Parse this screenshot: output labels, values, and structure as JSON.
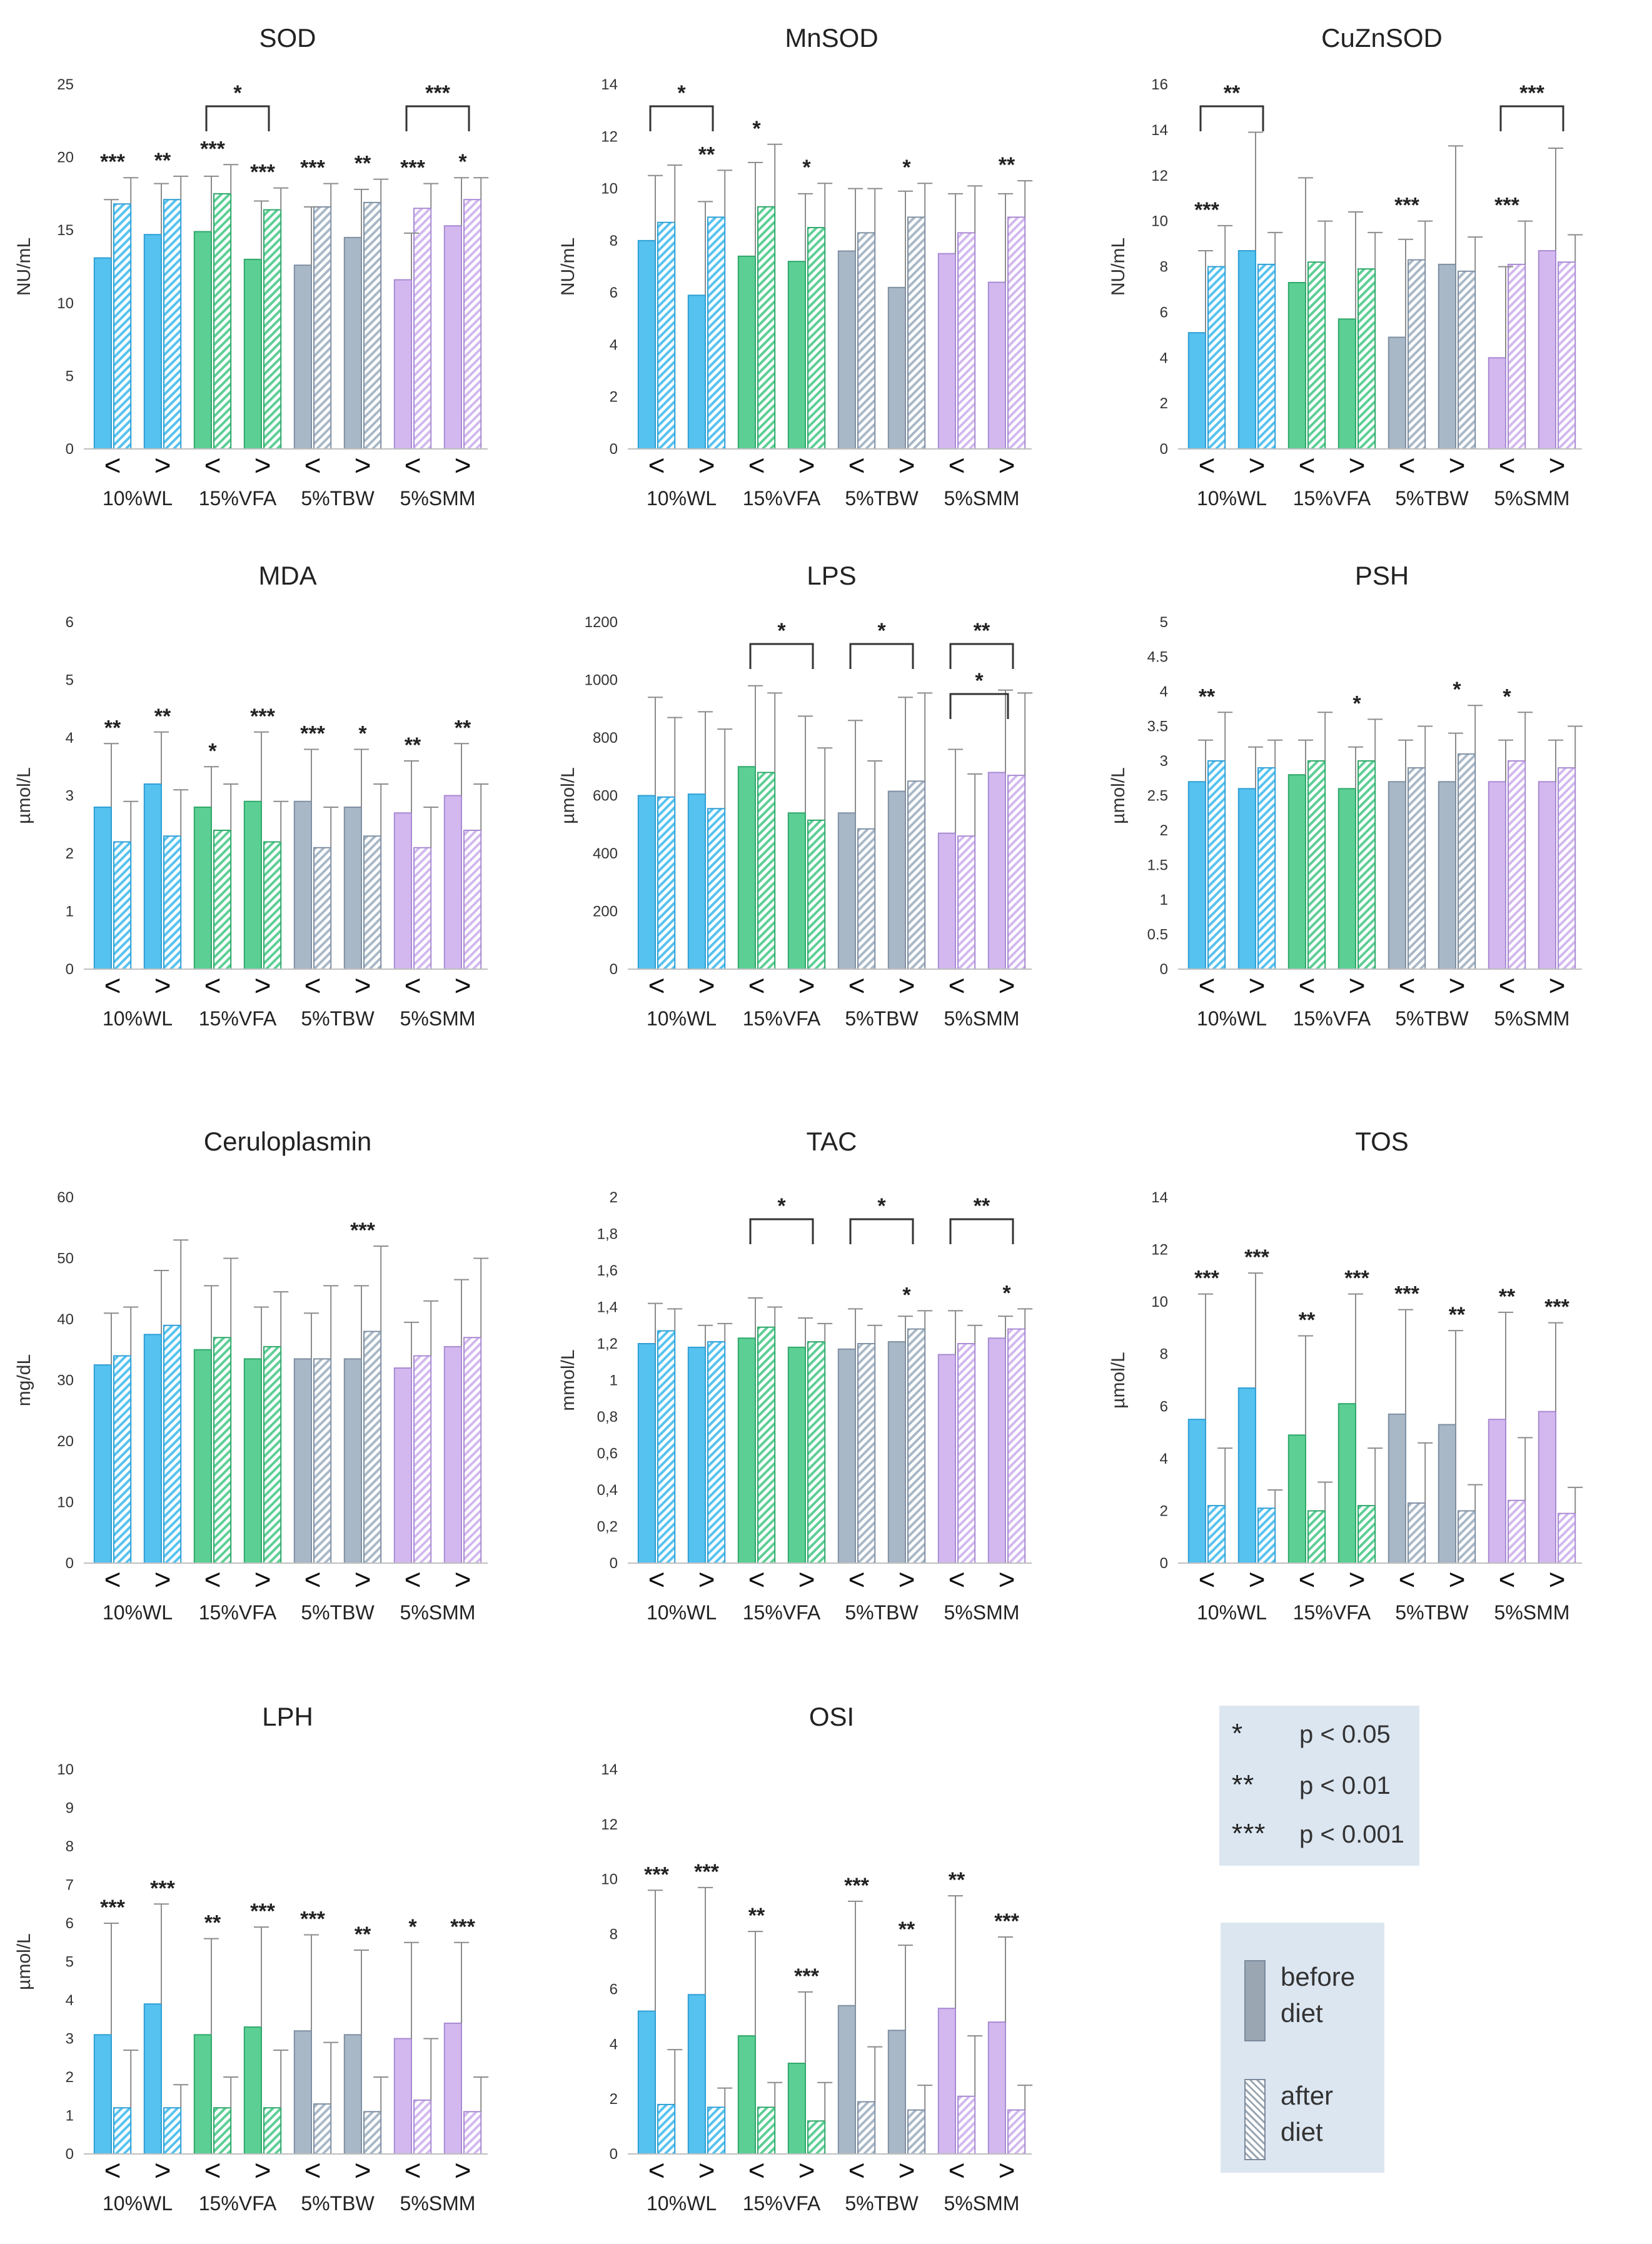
{
  "colors": {
    "wl": "#56c2ef",
    "vfa": "#5ccf95",
    "tbw": "#a9b8c7",
    "smm": "#d2b8ee",
    "edge_wl": "#2f9fd6",
    "edge_vfa": "#2fa86a",
    "edge_tbw": "#7f90a2",
    "edge_smm": "#a98ad3"
  },
  "legend": {
    "significance": [
      {
        "stars": "*",
        "label": "p < 0.05"
      },
      {
        "stars": "**",
        "label": "p < 0.01"
      },
      {
        "stars": "***",
        "label": "p < 0.001"
      }
    ],
    "before": [
      "before",
      "diet"
    ],
    "after": [
      "after",
      "diet"
    ]
  },
  "chart_data": [
    {
      "type": "bar",
      "title": "SOD",
      "ylabel": "NU/mL",
      "ylim": [
        0,
        25
      ],
      "yticks": [
        "0",
        "5",
        "10",
        "15",
        "20",
        "25"
      ],
      "groups": [
        "10%WL",
        "15%VFA",
        "5%TBW",
        "5%SMM"
      ],
      "subcategories": [
        "<",
        ">",
        "<",
        ">",
        "<",
        ">",
        "<",
        ">"
      ],
      "series": [
        {
          "name": "before diet",
          "values": [
            13.1,
            14.7,
            14.9,
            13.0,
            12.6,
            14.5,
            11.6,
            15.3
          ],
          "errors": [
            4.0,
            3.5,
            3.8,
            4.0,
            4.0,
            3.3,
            3.2,
            3.3
          ]
        },
        {
          "name": "after diet",
          "values": [
            16.8,
            17.1,
            17.5,
            16.4,
            16.6,
            16.9,
            16.5,
            17.1
          ],
          "errors": [
            1.8,
            1.6,
            2.0,
            1.5,
            1.6,
            1.6,
            1.7,
            1.5
          ]
        }
      ],
      "pair_stars": [
        "***",
        "**",
        "***",
        "***",
        "***",
        "**",
        "***",
        "*"
      ],
      "brackets": [
        {
          "from": 2,
          "to": 3,
          "label": "*"
        },
        {
          "from": 6,
          "to": 7,
          "label": "***"
        }
      ]
    },
    {
      "type": "bar",
      "title": "MnSOD",
      "ylabel": "NU/mL",
      "ylim": [
        0,
        14
      ],
      "yticks": [
        "0",
        "2",
        "4",
        "6",
        "8",
        "10",
        "12",
        "14"
      ],
      "groups": [
        "10%WL",
        "15%VFA",
        "5%TBW",
        "5%SMM"
      ],
      "subcategories": [
        "<",
        ">",
        "<",
        ">",
        "<",
        ">",
        "<",
        ">"
      ],
      "series": [
        {
          "name": "before diet",
          "values": [
            8.0,
            5.9,
            7.4,
            7.2,
            7.6,
            6.2,
            7.5,
            6.4
          ],
          "errors": [
            2.5,
            3.6,
            3.6,
            2.6,
            2.4,
            3.7,
            2.3,
            3.4
          ]
        },
        {
          "name": "after diet",
          "values": [
            8.7,
            8.9,
            9.3,
            8.5,
            8.3,
            8.9,
            8.3,
            8.9
          ],
          "errors": [
            2.2,
            1.8,
            2.4,
            1.7,
            1.7,
            1.3,
            1.8,
            1.4
          ]
        }
      ],
      "pair_stars": [
        "",
        "**",
        "*",
        "*",
        "",
        "*",
        "",
        "**"
      ],
      "brackets": [
        {
          "from": 0,
          "to": 1,
          "label": "*"
        }
      ]
    },
    {
      "type": "bar",
      "title": "CuZnSOD",
      "ylabel": "NU/mL",
      "ylim": [
        0,
        16
      ],
      "yticks": [
        "0",
        "2",
        "4",
        "6",
        "8",
        "10",
        "12",
        "14",
        "16"
      ],
      "groups": [
        "10%WL",
        "15%VFA",
        "5%TBW",
        "5%SMM"
      ],
      "subcategories": [
        "<",
        ">",
        "<",
        ">",
        "<",
        ">",
        "<",
        ">"
      ],
      "series": [
        {
          "name": "before diet",
          "values": [
            5.1,
            8.7,
            7.3,
            5.7,
            4.9,
            8.1,
            4.0,
            8.7
          ],
          "errors": [
            3.6,
            5.2,
            4.6,
            4.7,
            4.3,
            5.2,
            4.0,
            4.5
          ]
        },
        {
          "name": "after diet",
          "values": [
            8.0,
            8.1,
            8.2,
            7.9,
            8.3,
            7.8,
            8.1,
            8.2
          ],
          "errors": [
            1.8,
            1.4,
            1.8,
            1.6,
            1.7,
            1.5,
            1.9,
            1.2
          ]
        }
      ],
      "pair_stars": [
        "***",
        "",
        "",
        "",
        "***",
        "",
        "***",
        ""
      ],
      "brackets": [
        {
          "from": 0,
          "to": 1,
          "label": "**"
        },
        {
          "from": 6,
          "to": 7,
          "label": "***"
        }
      ]
    },
    {
      "type": "bar",
      "title": "MDA",
      "ylabel": "µmol/L",
      "ylim": [
        0,
        6
      ],
      "yticks": [
        "0",
        "1",
        "2",
        "3",
        "4",
        "5",
        "6"
      ],
      "groups": [
        "10%WL",
        "15%VFA",
        "5%TBW",
        "5%SMM"
      ],
      "subcategories": [
        "<",
        ">",
        "<",
        ">",
        "<",
        ">",
        "<",
        ">"
      ],
      "series": [
        {
          "name": "before diet",
          "values": [
            2.8,
            3.2,
            2.8,
            2.9,
            2.9,
            2.8,
            2.7,
            3.0
          ],
          "errors": [
            1.1,
            0.9,
            0.7,
            1.2,
            0.9,
            1.0,
            0.9,
            0.9
          ]
        },
        {
          "name": "after diet",
          "values": [
            2.2,
            2.3,
            2.4,
            2.2,
            2.1,
            2.3,
            2.1,
            2.4
          ],
          "errors": [
            0.7,
            0.8,
            0.8,
            0.7,
            0.7,
            0.9,
            0.7,
            0.8
          ]
        }
      ],
      "pair_stars": [
        "**",
        "**",
        "*",
        "***",
        "***",
        "*",
        "**",
        "**"
      ],
      "brackets": []
    },
    {
      "type": "bar",
      "title": "LPS",
      "ylabel": "µmol/L",
      "ylim": [
        0,
        1200
      ],
      "yticks": [
        "0",
        "200",
        "400",
        "600",
        "800",
        "1000",
        "1200"
      ],
      "groups": [
        "10%WL",
        "15%VFA",
        "5%TBW",
        "5%SMM"
      ],
      "subcategories": [
        "<",
        ">",
        "<",
        ">",
        "<",
        ">",
        "<",
        ">"
      ],
      "series": [
        {
          "name": "before diet",
          "values": [
            600,
            605,
            700,
            540,
            540,
            615,
            470,
            680
          ],
          "errors": [
            340,
            285,
            280,
            335,
            320,
            325,
            290,
            285
          ]
        },
        {
          "name": "after diet",
          "values": [
            595,
            555,
            680,
            515,
            485,
            650,
            460,
            670
          ],
          "errors": [
            275,
            275,
            275,
            250,
            235,
            305,
            215,
            285
          ]
        }
      ],
      "pair_stars": [
        "",
        "",
        "",
        "",
        "",
        "",
        "",
        ""
      ],
      "brackets": [
        {
          "from": 2,
          "to": 3,
          "label": "*"
        },
        {
          "from": 4,
          "to": 5,
          "label": "*"
        },
        {
          "from": 6,
          "to": 7,
          "label": "**"
        },
        {
          "from": 6,
          "to": 6.9,
          "label": "*",
          "level": "low"
        }
      ]
    },
    {
      "type": "bar",
      "title": "PSH",
      "ylabel": "µmol/L",
      "ylim": [
        0,
        5
      ],
      "yticks": [
        "0",
        "0.5",
        "1",
        "1.5",
        "2",
        "2.5",
        "3",
        "3.5",
        "4",
        "4.5",
        "5"
      ],
      "groups": [
        "10%WL",
        "15%VFA",
        "5%TBW",
        "5%SMM"
      ],
      "subcategories": [
        "<",
        ">",
        "<",
        ">",
        "<",
        ">",
        "<",
        ">"
      ],
      "series": [
        {
          "name": "before diet",
          "values": [
            2.7,
            2.6,
            2.8,
            2.6,
            2.7,
            2.7,
            2.7,
            2.7
          ],
          "errors": [
            0.6,
            0.6,
            0.5,
            0.6,
            0.6,
            0.7,
            0.6,
            0.6
          ]
        },
        {
          "name": "after diet",
          "values": [
            3.0,
            2.9,
            3.0,
            3.0,
            2.9,
            3.1,
            3.0,
            2.9
          ],
          "errors": [
            0.7,
            0.4,
            0.7,
            0.6,
            0.6,
            0.7,
            0.7,
            0.6
          ]
        }
      ],
      "pair_stars": [
        "**",
        "",
        "",
        "*",
        "",
        "*",
        "*",
        ""
      ],
      "brackets": []
    },
    {
      "type": "bar",
      "title": "Ceruloplasmin",
      "ylabel": "mg/dL",
      "ylim": [
        0,
        60
      ],
      "yticks": [
        "0",
        "10",
        "20",
        "30",
        "40",
        "50",
        "60"
      ],
      "groups": [
        "10%WL",
        "15%VFA",
        "5%TBW",
        "5%SMM"
      ],
      "subcategories": [
        "<",
        ">",
        "<",
        ">",
        "<",
        ">",
        "<",
        ">"
      ],
      "series": [
        {
          "name": "before diet",
          "values": [
            32.5,
            37.5,
            35.0,
            33.5,
            33.5,
            33.5,
            32.0,
            35.5
          ],
          "errors": [
            8.5,
            10.5,
            10.5,
            8.5,
            7.5,
            12.0,
            7.5,
            11.0
          ]
        },
        {
          "name": "after diet",
          "values": [
            34.0,
            39.0,
            37.0,
            35.5,
            33.5,
            38.0,
            34.0,
            37.0
          ],
          "errors": [
            8.0,
            14.0,
            13.0,
            9.0,
            12.0,
            14.0,
            9.0,
            13.0
          ]
        }
      ],
      "pair_stars": [
        "",
        "",
        "",
        "",
        "",
        "***",
        "",
        ""
      ],
      "brackets": []
    },
    {
      "type": "bar",
      "title": "TAC",
      "ylabel": "mmol/L",
      "ylim": [
        0,
        2
      ],
      "yticks": [
        "0",
        "0,2",
        "0,4",
        "0,6",
        "0,8",
        "1",
        "1,2",
        "1,4",
        "1,6",
        "1,8",
        "2"
      ],
      "groups": [
        "10%WL",
        "15%VFA",
        "5%TBW",
        "5%SMM"
      ],
      "subcategories": [
        "<",
        ">",
        "<",
        ">",
        "<",
        ">",
        "<",
        ">"
      ],
      "series": [
        {
          "name": "before diet",
          "values": [
            1.2,
            1.18,
            1.23,
            1.18,
            1.17,
            1.21,
            1.14,
            1.23
          ],
          "errors": [
            0.22,
            0.12,
            0.22,
            0.16,
            0.22,
            0.14,
            0.24,
            0.12
          ]
        },
        {
          "name": "after diet",
          "values": [
            1.27,
            1.21,
            1.29,
            1.21,
            1.2,
            1.28,
            1.2,
            1.28
          ],
          "errors": [
            0.12,
            0.1,
            0.11,
            0.1,
            0.1,
            0.1,
            0.1,
            0.11
          ]
        }
      ],
      "pair_stars": [
        "",
        "",
        "",
        "",
        "",
        "*",
        "",
        "*"
      ],
      "brackets": [
        {
          "from": 2,
          "to": 3,
          "label": "*"
        },
        {
          "from": 4,
          "to": 5,
          "label": "*"
        },
        {
          "from": 6,
          "to": 7,
          "label": "**"
        }
      ]
    },
    {
      "type": "bar",
      "title": "TOS",
      "ylabel": "µmol/L",
      "ylim": [
        0,
        14
      ],
      "yticks": [
        "0",
        "2",
        "4",
        "6",
        "8",
        "10",
        "12",
        "14"
      ],
      "groups": [
        "10%WL",
        "15%VFA",
        "5%TBW",
        "5%SMM"
      ],
      "subcategories": [
        "<",
        ">",
        "<",
        ">",
        "<",
        ">",
        "<",
        ">"
      ],
      "series": [
        {
          "name": "before diet",
          "values": [
            5.5,
            6.7,
            4.9,
            6.1,
            5.7,
            5.3,
            5.5,
            5.8
          ],
          "errors": [
            4.8,
            4.4,
            3.8,
            4.2,
            4.0,
            3.6,
            4.1,
            3.4
          ]
        },
        {
          "name": "after diet",
          "values": [
            2.2,
            2.1,
            2.0,
            2.2,
            2.3,
            2.0,
            2.4,
            1.9
          ],
          "errors": [
            2.2,
            0.7,
            1.1,
            2.2,
            2.3,
            1.0,
            2.4,
            1.0
          ]
        }
      ],
      "pair_stars": [
        "***",
        "***",
        "**",
        "***",
        "***",
        "**",
        "**",
        "***"
      ],
      "brackets": []
    },
    {
      "type": "bar",
      "title": "LPH",
      "ylabel": "µmol/L",
      "ylim": [
        0,
        10
      ],
      "yticks": [
        "0",
        "1",
        "2",
        "3",
        "4",
        "5",
        "6",
        "7",
        "8",
        "9",
        "10"
      ],
      "groups": [
        "10%WL",
        "15%VFA",
        "5%TBW",
        "5%SMM"
      ],
      "subcategories": [
        "<",
        ">",
        "<",
        ">",
        "<",
        ">",
        "<",
        ">"
      ],
      "series": [
        {
          "name": "before diet",
          "values": [
            3.1,
            3.9,
            3.1,
            3.3,
            3.2,
            3.1,
            3.0,
            3.4
          ],
          "errors": [
            2.9,
            2.6,
            2.5,
            2.6,
            2.5,
            2.2,
            2.5,
            2.1
          ]
        },
        {
          "name": "after diet",
          "values": [
            1.2,
            1.2,
            1.2,
            1.2,
            1.3,
            1.1,
            1.4,
            1.1
          ],
          "errors": [
            1.5,
            0.6,
            0.8,
            1.5,
            1.6,
            0.9,
            1.6,
            0.9
          ]
        }
      ],
      "pair_stars": [
        "***",
        "***",
        "**",
        "***",
        "***",
        "**",
        "*",
        "***"
      ],
      "brackets": []
    },
    {
      "type": "bar",
      "title": "OSI",
      "ylabel": "",
      "ylim": [
        0,
        14
      ],
      "yticks": [
        "0",
        "2",
        "4",
        "6",
        "8",
        "10",
        "12",
        "14"
      ],
      "groups": [
        "10%WL",
        "15%VFA",
        "5%TBW",
        "5%SMM"
      ],
      "subcategories": [
        "<",
        ">",
        "<",
        ">",
        "<",
        ">",
        "<",
        ">"
      ],
      "series": [
        {
          "name": "before diet",
          "values": [
            5.2,
            5.8,
            4.3,
            3.3,
            5.4,
            4.5,
            5.3,
            4.8
          ],
          "errors": [
            4.4,
            3.9,
            3.8,
            2.6,
            3.8,
            3.1,
            4.1,
            3.1
          ]
        },
        {
          "name": "after diet",
          "values": [
            1.8,
            1.7,
            1.7,
            1.2,
            1.9,
            1.6,
            2.1,
            1.6
          ],
          "errors": [
            2.0,
            0.7,
            0.9,
            1.4,
            2.0,
            0.9,
            2.2,
            0.9
          ]
        }
      ],
      "pair_stars": [
        "***",
        "***",
        "**",
        "***",
        "***",
        "**",
        "**",
        "***"
      ],
      "brackets": []
    }
  ]
}
